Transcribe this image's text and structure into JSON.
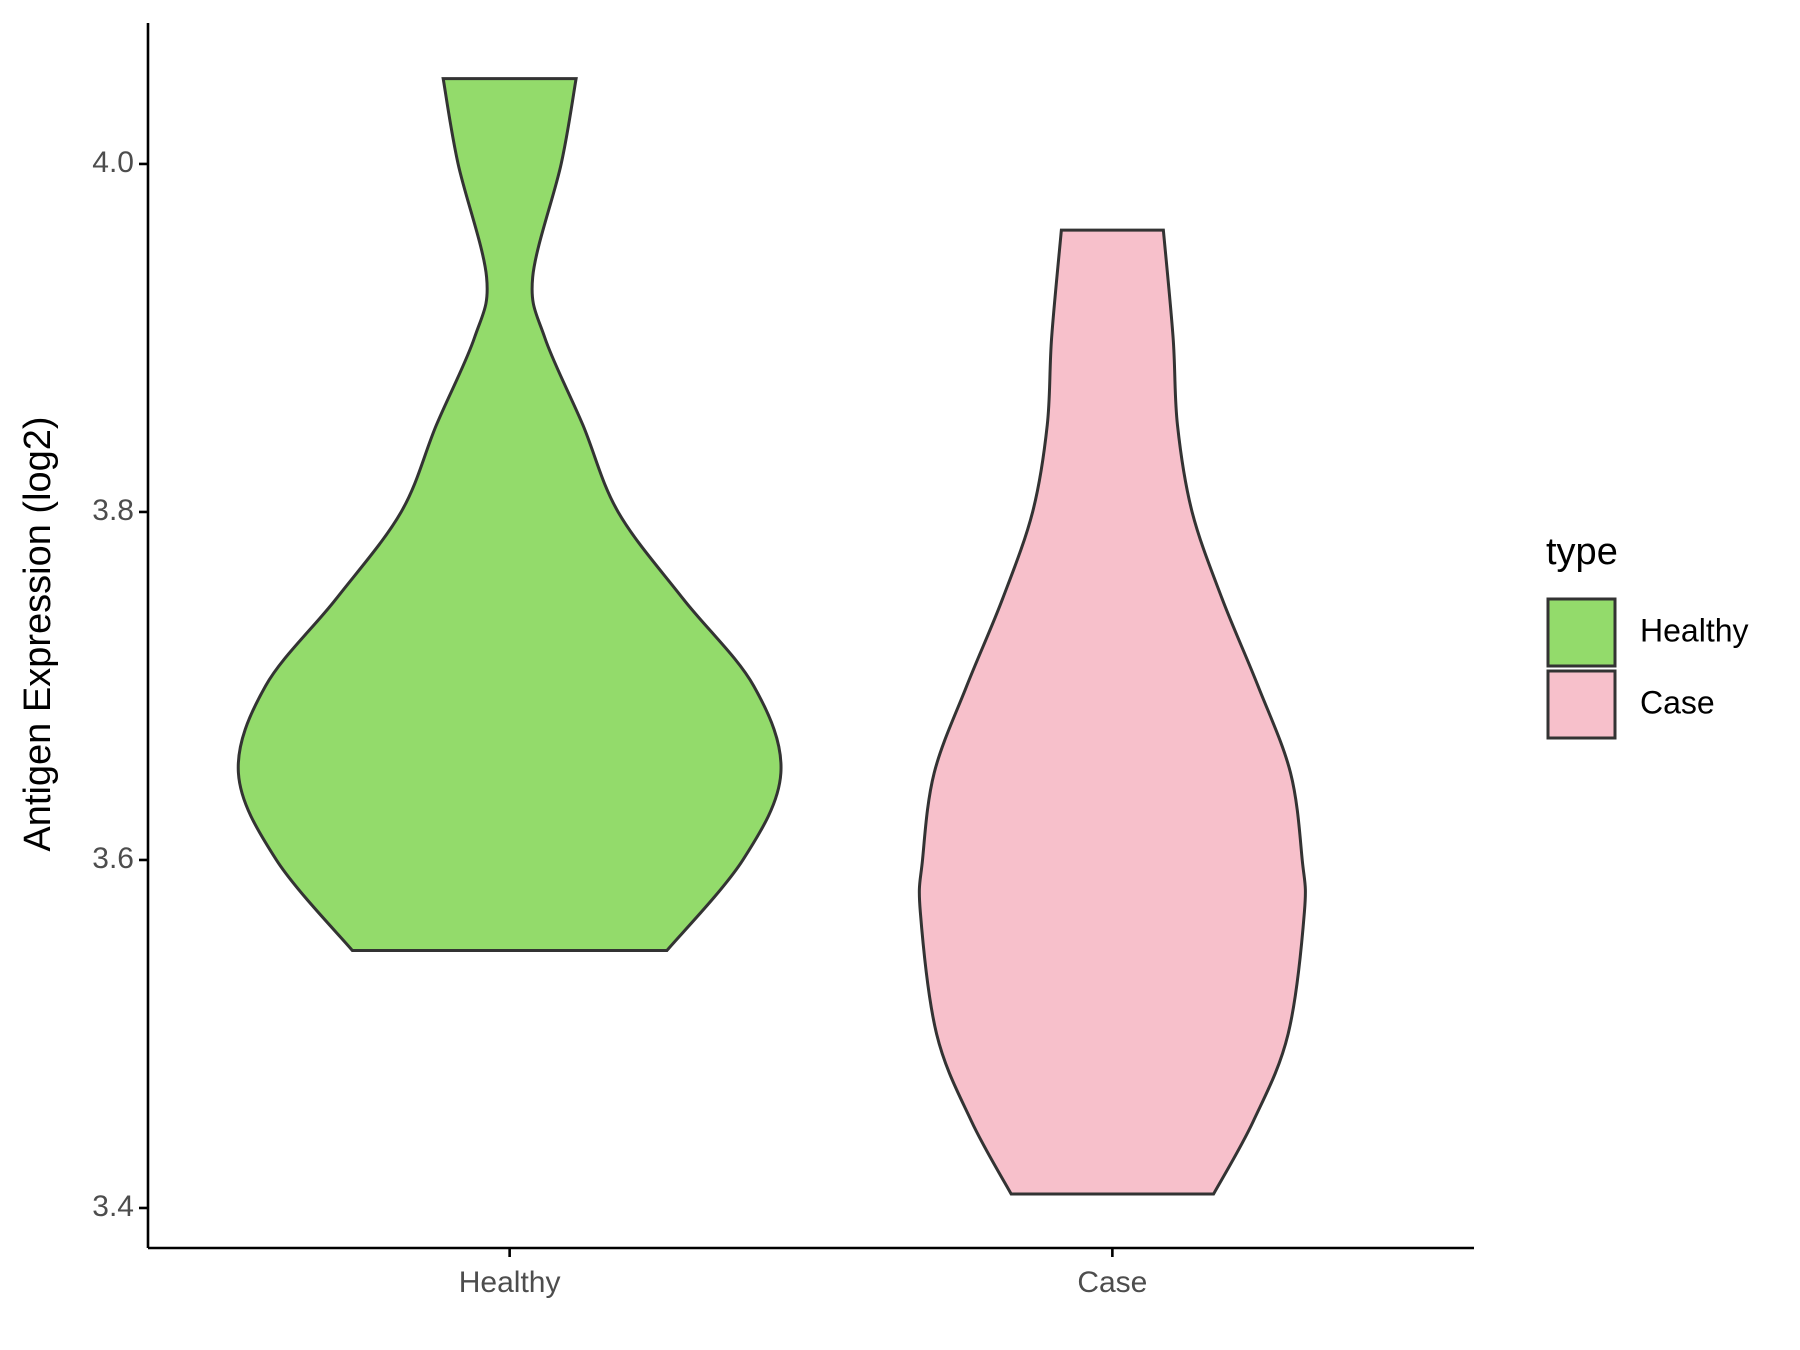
{
  "chart_data": {
    "type": "violin",
    "y_label": "Antigen Expression (log2)",
    "categories": [
      "Healthy",
      "Case"
    ],
    "ylim": [
      3.377,
      4.081
    ],
    "yticks": [
      3.4,
      3.6,
      3.8,
      {
        "value": 4.0,
        "label": "4.0"
      }
    ],
    "legend_title": "type",
    "legend_position": "right",
    "series": [
      {
        "name": "Healthy",
        "color": "#93db6b",
        "y": [
          4.049,
          4.0,
          3.935,
          3.9,
          3.85,
          3.8,
          3.75,
          3.7,
          3.65,
          3.6,
          3.548
        ],
        "density": [
          0.245,
          0.19,
          0.085,
          0.13,
          0.27,
          0.4,
          0.64,
          0.9,
          1.0,
          0.86,
          0.58
        ]
      },
      {
        "name": "Case",
        "color": "#f7c0cb",
        "y": [
          3.962,
          3.9,
          3.85,
          3.8,
          3.75,
          3.7,
          3.65,
          3.6,
          3.57,
          3.5,
          3.45,
          3.408
        ],
        "density": [
          0.188,
          0.224,
          0.24,
          0.294,
          0.405,
          0.537,
          0.657,
          0.7,
          0.708,
          0.648,
          0.52,
          0.373
        ]
      }
    ]
  }
}
